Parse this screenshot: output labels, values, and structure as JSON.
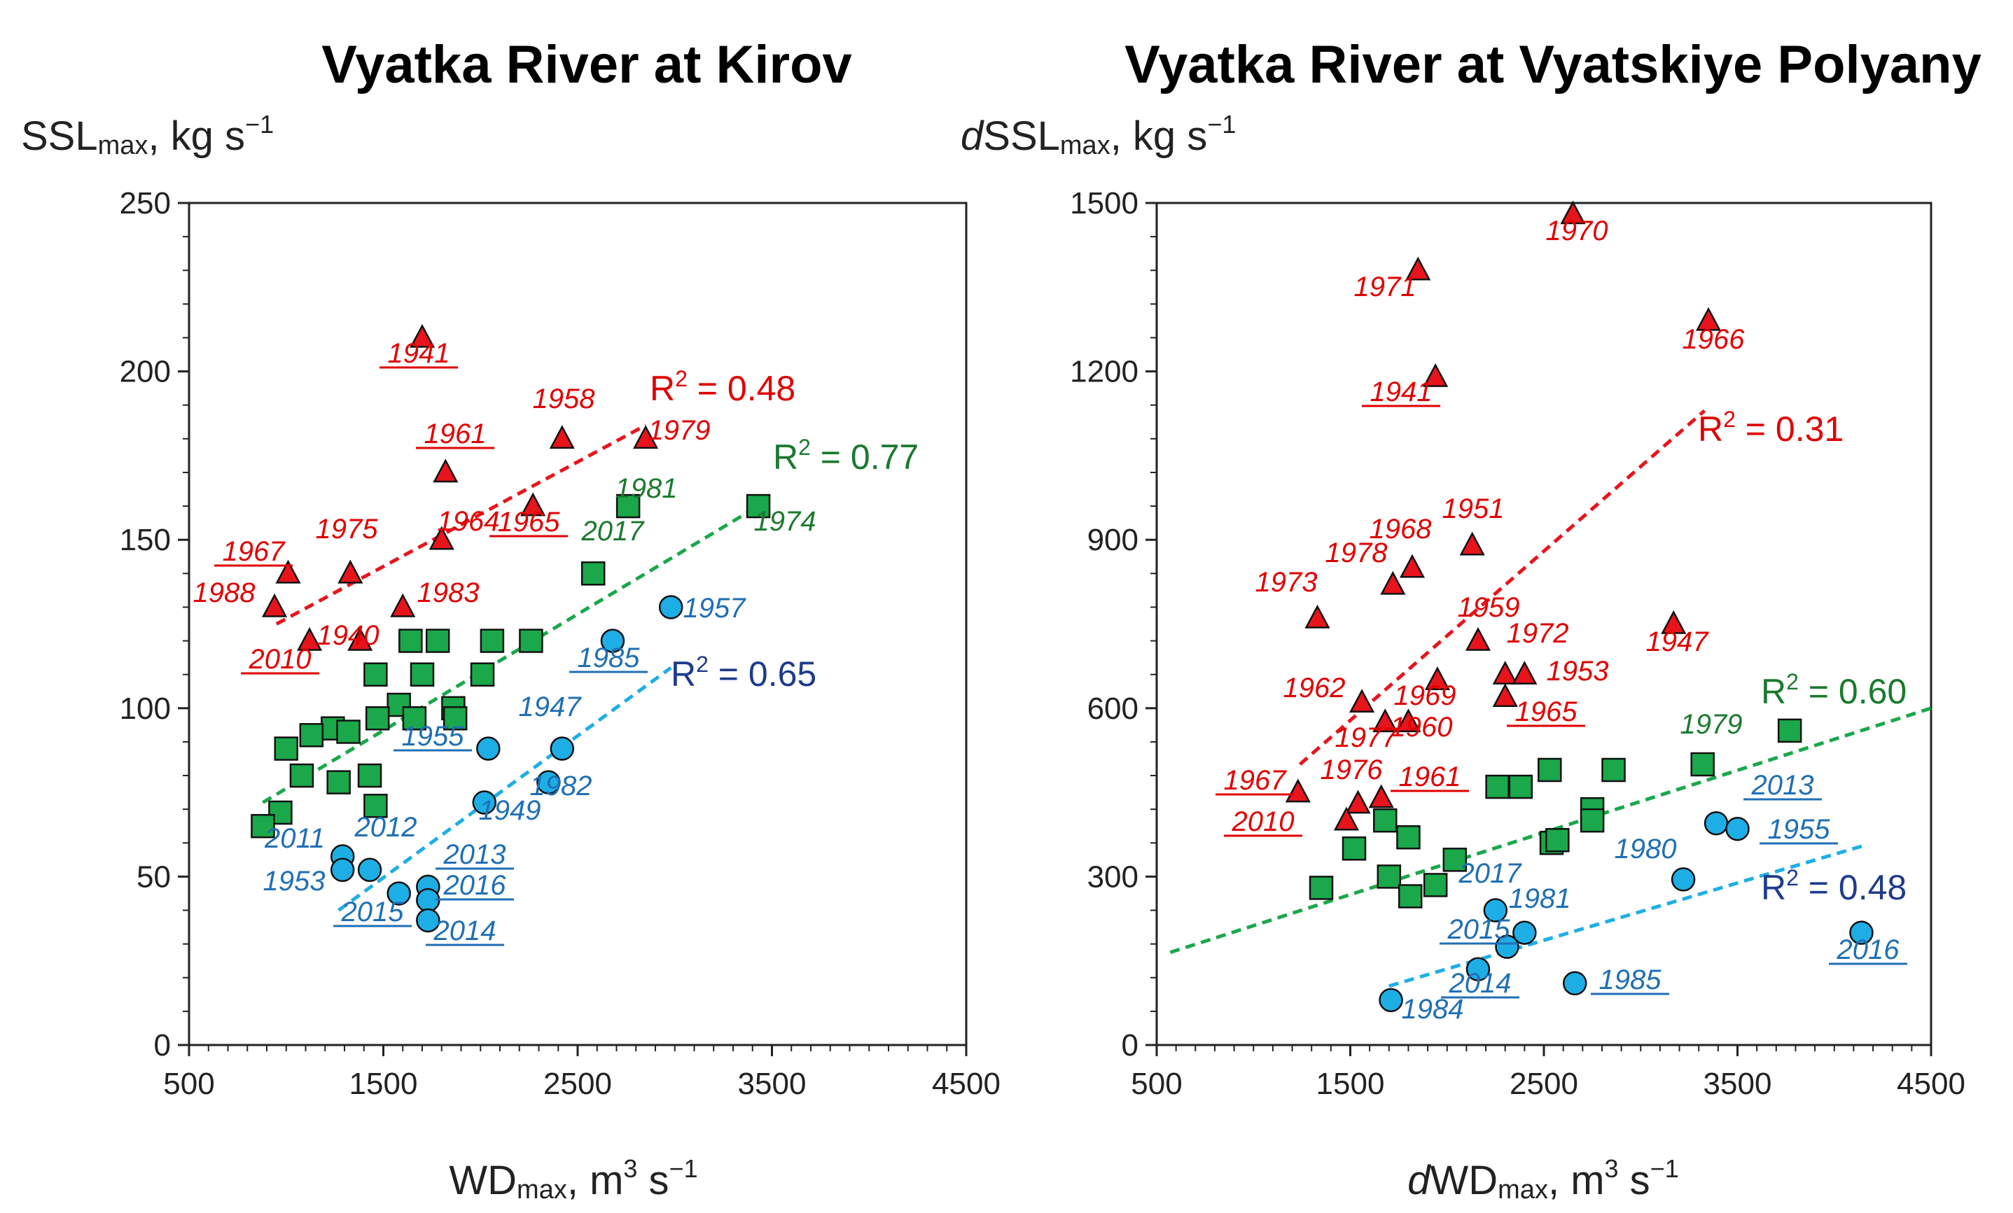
{
  "chart_data": [
    {
      "type": "scatter",
      "id": "kirov",
      "title": "Vyatka River at Kirov",
      "ylabel": {
        "prefix": "",
        "main": "SSL",
        "sub": "max",
        "units": ", kg s",
        "sup": "−1"
      },
      "xlabel": {
        "prefix": "",
        "main": "WD",
        "sub": "max",
        "units": ", m",
        "sup": "3",
        "units2": " s",
        "sup2": "−1"
      },
      "xlim": [
        500,
        4500
      ],
      "ylim": [
        0,
        250
      ],
      "xticks": [
        "500",
        "1500",
        "2500",
        "3500",
        "4500"
      ],
      "yticks": [
        "0",
        "50",
        "100",
        "150",
        "200",
        "250"
      ],
      "colors": {
        "red": "#e8141c",
        "green": "#1aa84a",
        "blue": "#1eaee6",
        "red_text": "#e00000",
        "green_text": "#1b7a2e",
        "blue_text": "#1f6fb5",
        "blue_r2": "#1f3b8c"
      },
      "series": [
        {
          "name": "red triangles",
          "marker": "triangle",
          "color": "red",
          "labelColor": "red_text",
          "points": [
            {
              "x": 1700,
              "y": 210,
              "label": "1941",
              "underline": true
            },
            {
              "x": 2420,
              "y": 180,
              "label": "1958",
              "underline": false
            },
            {
              "x": 2850,
              "y": 180,
              "label": "1979",
              "underline": false
            },
            {
              "x": 1820,
              "y": 170,
              "label": "1961",
              "underline": true
            },
            {
              "x": 2270,
              "y": 160,
              "label": "1965",
              "underline": true
            },
            {
              "x": 1800,
              "y": 150,
              "label": "1964",
              "underline": false
            },
            {
              "x": 1330,
              "y": 140,
              "label": "1975",
              "underline": false
            },
            {
              "x": 1010,
              "y": 140,
              "label": "1967",
              "underline": true
            },
            {
              "x": 940,
              "y": 130,
              "label": "1988",
              "underline": false
            },
            {
              "x": 1600,
              "y": 130,
              "label": "1983",
              "underline": false
            },
            {
              "x": 1380,
              "y": 120,
              "label": "1940",
              "underline": false
            },
            {
              "x": 1120,
              "y": 120,
              "label": "2010",
              "underline": true
            }
          ],
          "trend": {
            "x0": 950,
            "x1": 2850,
            "y0": 125,
            "y1": 184
          },
          "r2": "0.48",
          "r2Color": "red_text"
        },
        {
          "name": "green squares",
          "marker": "square",
          "color": "green",
          "labelColor": "green_text",
          "points": [
            {
              "x": 3430,
              "y": 160,
              "label": "1974",
              "underline": false
            },
            {
              "x": 2760,
              "y": 160,
              "label": "1981",
              "underline": false
            },
            {
              "x": 2580,
              "y": 140,
              "label": "2017",
              "underline": false
            },
            {
              "x": 1640,
              "y": 120
            },
            {
              "x": 1780,
              "y": 120
            },
            {
              "x": 2060,
              "y": 120
            },
            {
              "x": 2260,
              "y": 120
            },
            {
              "x": 1460,
              "y": 110
            },
            {
              "x": 1700,
              "y": 110
            },
            {
              "x": 2010,
              "y": 110
            },
            {
              "x": 1580,
              "y": 101
            },
            {
              "x": 1860,
              "y": 100
            },
            {
              "x": 1470,
              "y": 97
            },
            {
              "x": 1660,
              "y": 97
            },
            {
              "x": 1870,
              "y": 97
            },
            {
              "x": 1240,
              "y": 94
            },
            {
              "x": 1320,
              "y": 93
            },
            {
              "x": 1130,
              "y": 92
            },
            {
              "x": 1000,
              "y": 88
            },
            {
              "x": 1080,
              "y": 80
            },
            {
              "x": 1270,
              "y": 78
            },
            {
              "x": 1430,
              "y": 80
            },
            {
              "x": 1460,
              "y": 71
            },
            {
              "x": 970,
              "y": 69
            },
            {
              "x": 880,
              "y": 65
            }
          ],
          "trend": {
            "x0": 880,
            "x1": 3430,
            "y0": 72,
            "y1": 160
          },
          "r2": "0.77",
          "r2Color": "green_text"
        },
        {
          "name": "blue circles",
          "marker": "circle",
          "color": "blue",
          "labelColor": "blue_text",
          "points": [
            {
              "x": 2980,
              "y": 130,
              "label": "1957",
              "underline": false
            },
            {
              "x": 2680,
              "y": 120,
              "label": "1985",
              "underline": true
            },
            {
              "x": 2040,
              "y": 88,
              "label": "1955",
              "underline": true
            },
            {
              "x": 2420,
              "y": 88,
              "label": "1947",
              "underline": false
            },
            {
              "x": 2350,
              "y": 78,
              "label": "1982",
              "underline": false
            },
            {
              "x": 2020,
              "y": 72,
              "label": "1949",
              "underline": false
            },
            {
              "x": 1290,
              "y": 56,
              "label": "2011",
              "underline": false
            },
            {
              "x": 1430,
              "y": 52,
              "label": "2012",
              "underline": false
            },
            {
              "x": 1290,
              "y": 52,
              "label": "1953",
              "underline": false
            },
            {
              "x": 1580,
              "y": 45,
              "label": "2015",
              "underline": true
            },
            {
              "x": 1730,
              "y": 47,
              "label": "2013",
              "underline": true
            },
            {
              "x": 1730,
              "y": 43,
              "label": "2016",
              "underline": true
            },
            {
              "x": 1730,
              "y": 37,
              "label": "2014",
              "underline": true
            }
          ],
          "trend": {
            "x0": 1270,
            "x1": 2980,
            "y0": 40,
            "y1": 112
          },
          "r2": "0.65",
          "r2Color": "blue_r2"
        }
      ]
    },
    {
      "type": "scatter",
      "id": "polyany",
      "title": "Vyatka River at Vyatskiye Polyany",
      "ylabel": {
        "prefix": "d",
        "main": "SSL",
        "sub": "max",
        "units": ", kg s",
        "sup": "−1"
      },
      "xlabel": {
        "prefix": "d",
        "main": "WD",
        "sub": "max",
        "units": ", m",
        "sup": "3",
        "units2": " s",
        "sup2": "−1"
      },
      "xlim": [
        500,
        4500
      ],
      "ylim": [
        0,
        1500
      ],
      "xticks": [
        "500",
        "1500",
        "2500",
        "3500",
        "4500"
      ],
      "yticks": [
        "0",
        "300",
        "600",
        "900",
        "1200",
        "1500"
      ],
      "colors": {
        "red": "#e8141c",
        "green": "#1aa84a",
        "blue": "#1eaee6",
        "red_text": "#e00000",
        "green_text": "#1b7a2e",
        "blue_text": "#1f6fb5",
        "blue_r2": "#1f3b8c"
      },
      "series": [
        {
          "name": "red triangles",
          "marker": "triangle",
          "color": "red",
          "labelColor": "red_text",
          "points": [
            {
              "x": 2650,
              "y": 1480,
              "label": "1970",
              "underline": false
            },
            {
              "x": 1850,
              "y": 1380,
              "label": "1971",
              "underline": false
            },
            {
              "x": 3350,
              "y": 1290,
              "label": "1966",
              "underline": false
            },
            {
              "x": 1940,
              "y": 1190,
              "label": "1941",
              "underline": true
            },
            {
              "x": 2130,
              "y": 890,
              "label": "1951",
              "underline": false
            },
            {
              "x": 1820,
              "y": 850,
              "label": "1968",
              "underline": false
            },
            {
              "x": 1720,
              "y": 820,
              "label": "1978",
              "underline": false
            },
            {
              "x": 1330,
              "y": 760,
              "label": "1973",
              "underline": false
            },
            {
              "x": 3170,
              "y": 750,
              "label": "1947",
              "underline": false
            },
            {
              "x": 2160,
              "y": 720,
              "label": "1959",
              "underline": false
            },
            {
              "x": 2300,
              "y": 660,
              "label": "1972",
              "underline": false
            },
            {
              "x": 2400,
              "y": 660,
              "label": "1953",
              "underline": false
            },
            {
              "x": 1950,
              "y": 650,
              "label": "1969",
              "underline": false
            },
            {
              "x": 2300,
              "y": 620,
              "label": "1965",
              "underline": true
            },
            {
              "x": 1560,
              "y": 610,
              "label": "1962",
              "underline": false
            },
            {
              "x": 1680,
              "y": 575,
              "label": "1977",
              "underline": false
            },
            {
              "x": 1800,
              "y": 575,
              "label": "1960",
              "underline": false
            },
            {
              "x": 1230,
              "y": 450,
              "label": "1967",
              "underline": true
            },
            {
              "x": 1540,
              "y": 430,
              "label": "1976",
              "underline": false
            },
            {
              "x": 1660,
              "y": 440,
              "label": "1961",
              "underline": true
            },
            {
              "x": 1480,
              "y": 400,
              "label": "2010",
              "underline": true
            }
          ],
          "trend": {
            "x0": 1240,
            "x1": 3330,
            "y0": 500,
            "y1": 1130
          },
          "r2": "0.31",
          "r2Color": "red_text"
        },
        {
          "name": "green squares",
          "marker": "square",
          "color": "green",
          "labelColor": "green_text",
          "points": [
            {
              "x": 3770,
              "y": 560
            },
            {
              "x": 3320,
              "y": 500,
              "label": "1979",
              "underline": false
            },
            {
              "x": 2860,
              "y": 490
            },
            {
              "x": 2530,
              "y": 490
            },
            {
              "x": 2260,
              "y": 460
            },
            {
              "x": 2380,
              "y": 460
            },
            {
              "x": 2750,
              "y": 420
            },
            {
              "x": 2750,
              "y": 400
            },
            {
              "x": 1680,
              "y": 400
            },
            {
              "x": 1800,
              "y": 370
            },
            {
              "x": 2540,
              "y": 360
            },
            {
              "x": 2570,
              "y": 365
            },
            {
              "x": 1520,
              "y": 350
            },
            {
              "x": 2040,
              "y": 330
            },
            {
              "x": 1700,
              "y": 300
            },
            {
              "x": 1350,
              "y": 280
            },
            {
              "x": 1940,
              "y": 285
            },
            {
              "x": 1810,
              "y": 265
            }
          ],
          "trend": {
            "x0": 570,
            "x1": 4500,
            "y0": 165,
            "y1": 600
          },
          "r2": "0.60",
          "r2Color": "green_text"
        },
        {
          "name": "blue circles",
          "marker": "circle",
          "color": "blue",
          "labelColor": "blue_text",
          "points": [
            {
              "x": 3390,
              "y": 395,
              "label": "2013",
              "underline": true
            },
            {
              "x": 3500,
              "y": 385,
              "label": "1955",
              "underline": true
            },
            {
              "x": 3220,
              "y": 295,
              "label": "1980",
              "underline": false
            },
            {
              "x": 2250,
              "y": 240,
              "label": "2017",
              "underline": false
            },
            {
              "x": 2400,
              "y": 200,
              "label": "1981",
              "underline": false
            },
            {
              "x": 4140,
              "y": 200,
              "label": "2016",
              "underline": true
            },
            {
              "x": 2310,
              "y": 175,
              "label": "2015",
              "underline": true
            },
            {
              "x": 2160,
              "y": 135,
              "label": "2014",
              "underline": true
            },
            {
              "x": 2660,
              "y": 110,
              "label": "1985",
              "underline": true
            },
            {
              "x": 1710,
              "y": 80,
              "label": "1984",
              "underline": false
            }
          ],
          "trend": {
            "x0": 1700,
            "x1": 4150,
            "y0": 105,
            "y1": 355
          },
          "r2": "0.48",
          "r2Color": "blue_r2"
        }
      ]
    }
  ]
}
